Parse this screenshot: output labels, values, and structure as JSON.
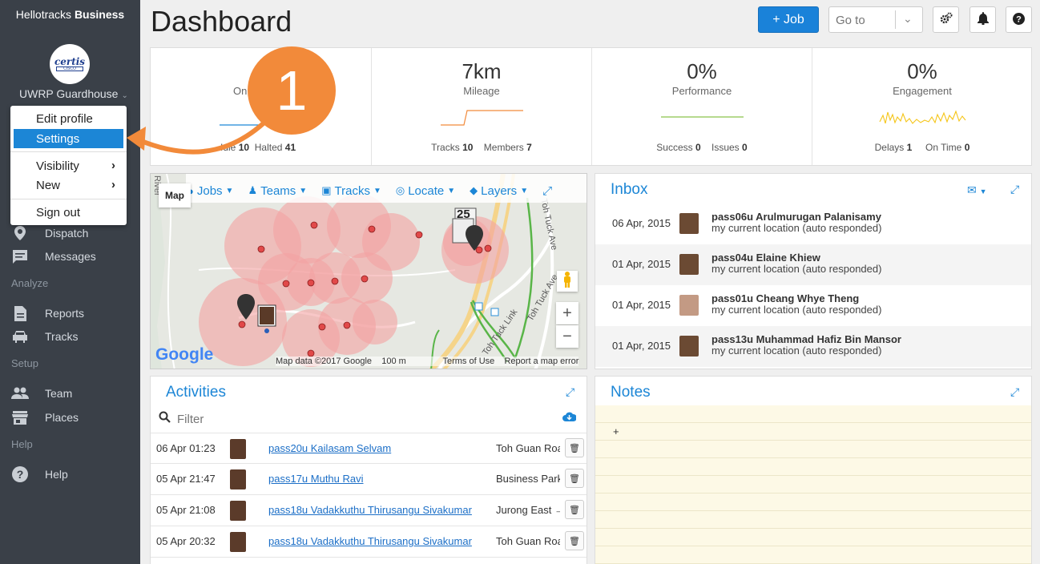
{
  "sidebar": {
    "brand_light": "Hellotracks",
    "brand_bold": "Business",
    "logo_text": "certis",
    "logo_subtext": "CISCO",
    "org_name": "UWRP Guardhouse",
    "sections": {
      "analyze": "Analyze",
      "setup": "Setup",
      "help": "Help"
    },
    "items": [
      {
        "label": "Dispatch",
        "icon": "pin-icon"
      },
      {
        "label": "Messages",
        "icon": "message-icon"
      },
      {
        "label": "Reports",
        "icon": "document-icon"
      },
      {
        "label": "Tracks",
        "icon": "car-icon"
      },
      {
        "label": "Team",
        "icon": "people-icon"
      },
      {
        "label": "Places",
        "icon": "store-icon"
      },
      {
        "label": "Help",
        "icon": "question-icon"
      }
    ]
  },
  "profile_menu": {
    "items": [
      "Edit profile",
      "Settings",
      "Visibility",
      "New",
      "Sign out"
    ],
    "active": "Settings"
  },
  "header": {
    "title": "Dashboard",
    "job_button": "+ Job",
    "goto_placeholder": "Go to"
  },
  "step_badge": "1",
  "stats": [
    {
      "value": "",
      "label": "On",
      "foot": [
        {
          "k": "Idle",
          "v": "10"
        },
        {
          "k": "Halted",
          "v": "41"
        }
      ],
      "color": "#1c86d6"
    },
    {
      "value": "7km",
      "label": "Mileage",
      "foot": [
        {
          "k": "Tracks",
          "v": "10"
        },
        {
          "k": "Members",
          "v": "7"
        }
      ],
      "color": "#f28a3a"
    },
    {
      "value": "0%",
      "label": "Performance",
      "foot": [
        {
          "k": "Success",
          "v": "0"
        },
        {
          "k": "Issues",
          "v": "0"
        }
      ],
      "color": "#8bc34a"
    },
    {
      "value": "0%",
      "label": "Engagement",
      "foot": [
        {
          "k": "Delays",
          "v": "1"
        },
        {
          "k": "On Time",
          "v": "0"
        }
      ],
      "color": "#f5c518"
    }
  ],
  "map": {
    "type_button": "Map",
    "tools": [
      {
        "label": "Jobs",
        "icon": "pin-icon"
      },
      {
        "label": "Teams",
        "icon": "people-icon"
      },
      {
        "label": "Tracks",
        "icon": "car-icon"
      },
      {
        "label": "Locate",
        "icon": "crosshair-icon"
      },
      {
        "label": "Layers",
        "icon": "layers-icon"
      }
    ],
    "cluster_count": "25",
    "footer": "Map data ©2017 Google    100 m               Terms of Use    Report a map error",
    "google": "Google",
    "road_labels": [
      "River",
      "Toh Tuck Ave",
      "Toh Tuck Ave",
      "Toh Tuck Link"
    ]
  },
  "inbox": {
    "title": "Inbox",
    "messages": [
      {
        "date": "06 Apr, 2015",
        "name": "pass06u Arulmurugan Palanisamy",
        "msg": "my current location (auto responded)"
      },
      {
        "date": "01 Apr, 2015",
        "name": "pass04u Elaine Khiew",
        "msg": "my current location (auto responded)"
      },
      {
        "date": "01 Apr, 2015",
        "name": "pass01u Cheang Whye Theng",
        "msg": "my current location (auto responded)"
      },
      {
        "date": "01 Apr, 2015",
        "name": "pass13u Muhammad Hafiz Bin Mansor",
        "msg": "my current location (auto responded)"
      }
    ]
  },
  "activities": {
    "title": "Activities",
    "filter_placeholder": "Filter",
    "rows": [
      {
        "time": "06 Apr 01:23",
        "name": "pass20u Kailasam Selvam",
        "place": "Toh Guan Road"
      },
      {
        "time": "05 Apr 21:47",
        "name": "pass17u Muthu Ravi",
        "place": "Business Park"
      },
      {
        "time": "05 Apr 21:08",
        "name": "pass18u Vadakkuthu Thirusangu Sivakumar",
        "place": "Jurong East →"
      },
      {
        "time": "05 Apr 20:32",
        "name": "pass18u Vadakkuthu Thirusangu Sivakumar",
        "place": "Toh Guan Road"
      }
    ]
  },
  "notes": {
    "title": "Notes",
    "add": "+"
  }
}
